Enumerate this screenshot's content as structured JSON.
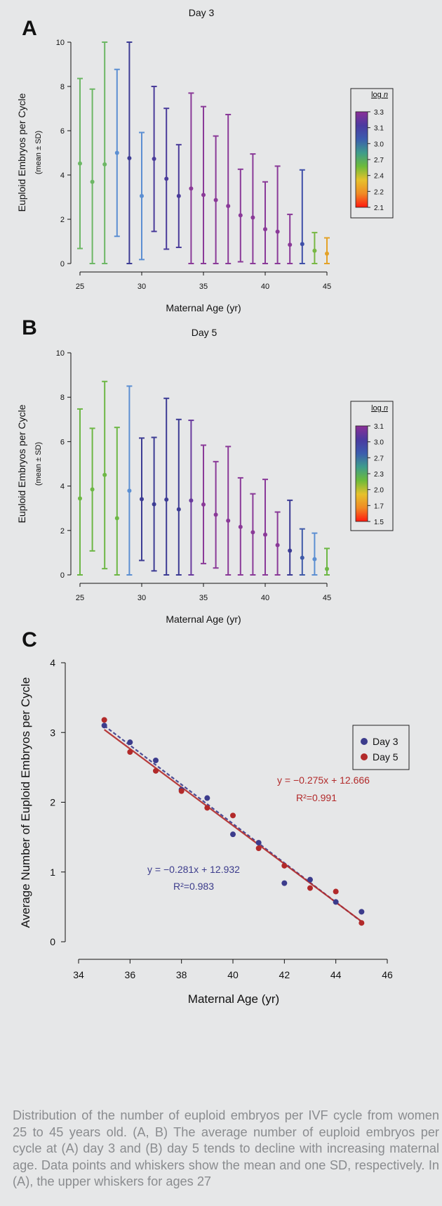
{
  "chart_data": [
    {
      "panel": "A",
      "type": "scatter",
      "title": "Day 3",
      "xlabel": "Maternal Age (yr)",
      "ylabel": "Euploid Embryos per Cycle",
      "ylabel_sub": "(mean ± SD)",
      "xlim": [
        25,
        45
      ],
      "ylim": [
        0,
        10
      ],
      "xticks": [
        25,
        30,
        35,
        40,
        45
      ],
      "yticks": [
        0,
        2,
        4,
        6,
        8,
        10
      ],
      "x": [
        25,
        26,
        27,
        28,
        29,
        30,
        31,
        32,
        33,
        34,
        35,
        36,
        37,
        38,
        39,
        40,
        41,
        42,
        43,
        44,
        45
      ],
      "mean": [
        4.52,
        3.69,
        4.48,
        5.0,
        4.76,
        3.05,
        4.73,
        3.83,
        3.05,
        3.39,
        3.1,
        2.87,
        2.6,
        2.18,
        2.08,
        1.55,
        1.44,
        0.85,
        0.88,
        0.58,
        0.45
      ],
      "low": [
        0.68,
        0.0,
        0.0,
        1.23,
        0.0,
        0.18,
        1.45,
        0.65,
        0.73,
        0.0,
        0.0,
        0.0,
        0.0,
        0.08,
        0.0,
        0.0,
        0.0,
        0.0,
        0.0,
        0.0,
        0.0
      ],
      "high": [
        8.36,
        7.88,
        10.0,
        8.77,
        10.0,
        5.92,
        8.0,
        7.01,
        5.37,
        7.7,
        7.09,
        5.76,
        6.73,
        4.26,
        4.95,
        3.69,
        4.4,
        2.22,
        4.23,
        1.4,
        1.16
      ],
      "colors": [
        "#6db765",
        "#6db765",
        "#6db765",
        "#5c8fd2",
        "#3d3c94",
        "#5c8fd2",
        "#4a3c9a",
        "#4a3c9a",
        "#4a3c9a",
        "#8a3a98",
        "#8a3a98",
        "#8a3a98",
        "#8a3a98",
        "#8a3a98",
        "#8a3a98",
        "#8a3a98",
        "#8a3a98",
        "#8a3a98",
        "#3f4fa8",
        "#78b844",
        "#e3a228"
      ],
      "colorbar": {
        "label": "log n",
        "ticks": [
          "3.3",
          "3.1",
          "3.0",
          "2.7",
          "2.4",
          "2.2",
          "2.1"
        ],
        "gradient": [
          "#8a2f97",
          "#4b3aa0",
          "#3c5cae",
          "#3e9c8c",
          "#6dbb3a",
          "#e6c12c",
          "#f08a24",
          "#ff1a10"
        ]
      }
    },
    {
      "panel": "B",
      "type": "scatter",
      "title": "Day 5",
      "xlabel": "Maternal Age (yr)",
      "ylabel": "Euploid Embryos per Cycle",
      "ylabel_sub": "(mean ± SD)",
      "xlim": [
        25,
        45
      ],
      "ylim": [
        0,
        10
      ],
      "xticks": [
        25,
        30,
        35,
        40,
        45
      ],
      "yticks": [
        0,
        2,
        4,
        6,
        8,
        10
      ],
      "x": [
        25,
        26,
        27,
        28,
        29,
        30,
        31,
        32,
        33,
        34,
        35,
        36,
        37,
        38,
        39,
        40,
        41,
        42,
        43,
        44,
        45
      ],
      "mean": [
        3.44,
        3.85,
        4.5,
        2.55,
        3.79,
        3.41,
        3.18,
        3.39,
        2.95,
        3.35,
        3.17,
        2.71,
        2.44,
        2.16,
        1.92,
        1.81,
        1.34,
        1.09,
        0.77,
        0.71,
        0.27
      ],
      "low": [
        0.0,
        1.08,
        0.28,
        0.0,
        0.0,
        0.65,
        0.18,
        0.0,
        0.0,
        0.0,
        0.51,
        0.31,
        0.0,
        0.0,
        0.0,
        0.0,
        0.0,
        0.0,
        0.0,
        0.0,
        0.0
      ],
      "high": [
        7.47,
        6.6,
        8.71,
        6.64,
        8.5,
        6.16,
        6.19,
        7.95,
        7.0,
        6.96,
        5.84,
        5.1,
        5.78,
        4.37,
        3.65,
        4.3,
        2.83,
        3.36,
        2.07,
        1.88,
        1.19
      ],
      "colors": [
        "#6db745",
        "#6db745",
        "#6db745",
        "#6db745",
        "#5c8fd2",
        "#3d3c94",
        "#3d3c94",
        "#3d3c94",
        "#3d3c94",
        "#6a3b9e",
        "#8a3a98",
        "#8a3a98",
        "#8a3a98",
        "#8a3a98",
        "#8a3a98",
        "#8a3a98",
        "#8a3a98",
        "#3d3c94",
        "#3f5aa8",
        "#5c8fd2",
        "#6db745"
      ],
      "colorbar": {
        "label": "log n",
        "ticks": [
          "3.1",
          "3.0",
          "2.7",
          "2.3",
          "2.0",
          "1.7",
          "1.5"
        ],
        "gradient": [
          "#8a2f97",
          "#4b3aa0",
          "#3c5cae",
          "#3e9c8c",
          "#6dbb3a",
          "#e6c12c",
          "#f08a24",
          "#ff1a10"
        ]
      }
    },
    {
      "panel": "C",
      "type": "scatter",
      "xlabel": "Maternal Age (yr)",
      "ylabel": "Average Number of Euploid Embryos per Cycle",
      "xlim": [
        34,
        46
      ],
      "ylim": [
        0,
        4
      ],
      "xticks": [
        34,
        36,
        38,
        40,
        42,
        44,
        46
      ],
      "yticks": [
        0,
        1,
        2,
        3,
        4
      ],
      "series": [
        {
          "name": "Day 3",
          "color": "#3c3c8c",
          "x": [
            35,
            36,
            37,
            38,
            39,
            40,
            41,
            42,
            43,
            44,
            45
          ],
          "y": [
            3.1,
            2.86,
            2.6,
            2.18,
            2.06,
            1.54,
            1.42,
            0.84,
            0.89,
            0.57,
            0.43
          ],
          "fit": {
            "slope": -0.281,
            "intercept": 12.932
          },
          "equation": "y = −0.281x + 12.932",
          "r2": "R²=0.983"
        },
        {
          "name": "Day 5",
          "color": "#b22a2a",
          "x": [
            35,
            36,
            37,
            38,
            39,
            40,
            41,
            42,
            43,
            44,
            45
          ],
          "y": [
            3.18,
            2.72,
            2.45,
            2.16,
            1.92,
            1.81,
            1.34,
            1.09,
            0.77,
            0.72,
            0.27
          ],
          "fit": {
            "slope": -0.275,
            "intercept": 12.666
          },
          "equation": "y = −0.275x + 12.666",
          "r2": "R²=0.991"
        }
      ]
    }
  ],
  "caption": {
    "text": "Distribution of the number of euploid embryos per IVF cycle from women 25 to 45 years old. (A, B) The average number of euploid embryos per cycle at (A) day 3 and (B) day 5 tends to decline with increasing maternal age. Data points and whiskers show the mean and one SD, respectively. In (A), the upper whiskers for ages 27"
  }
}
